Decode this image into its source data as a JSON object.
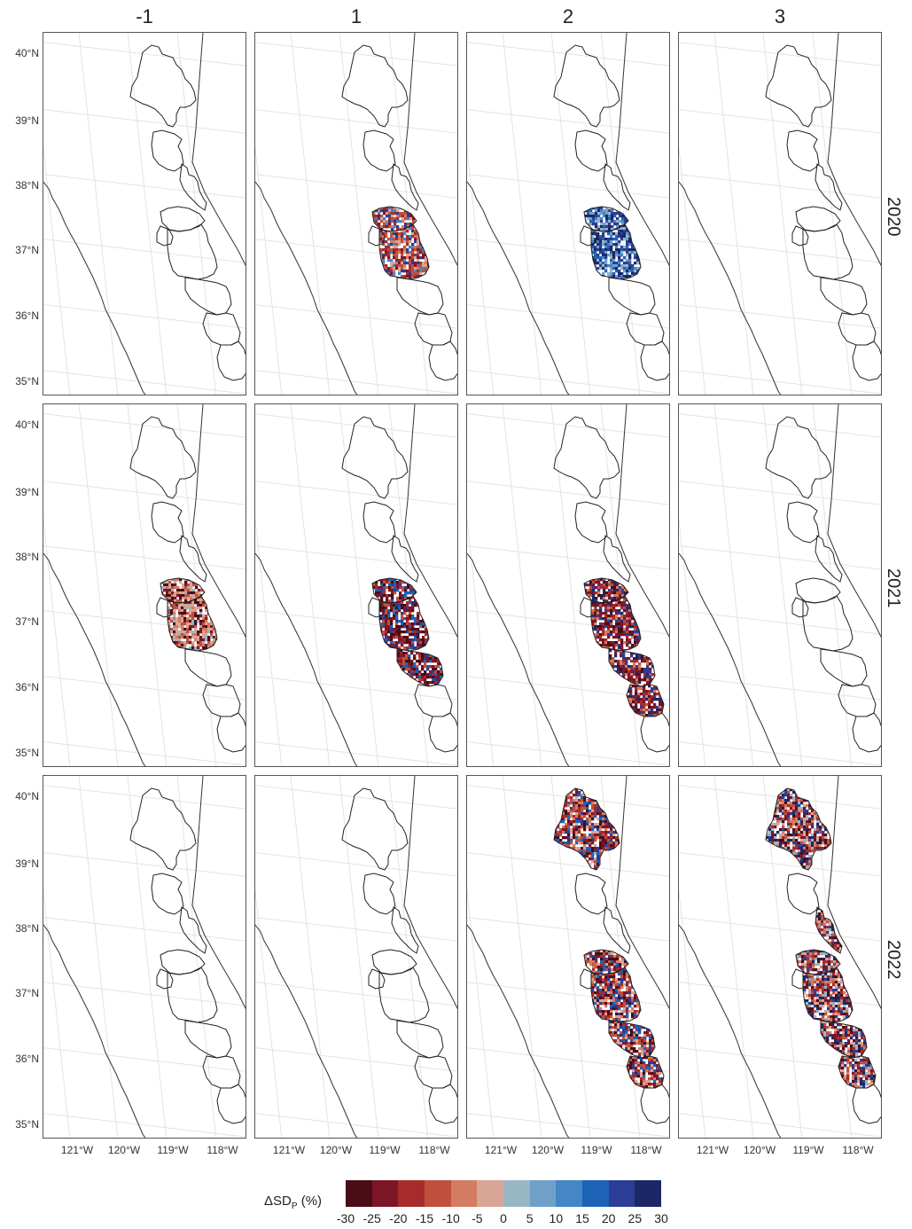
{
  "columns": [
    "-1",
    "1",
    "2",
    "3"
  ],
  "rows": [
    "2020",
    "2021",
    "2022"
  ],
  "lat_labels": [
    "40°N",
    "39°N",
    "38°N",
    "37°N",
    "36°N",
    "35°N"
  ],
  "lon_labels": [
    "121°W",
    "120°W",
    "119°W",
    "118°W"
  ],
  "legend": {
    "title": "ΔSD",
    "title_sub": "P",
    "title_unit": " (%)",
    "breaks": [
      "-30",
      "-25",
      "-20",
      "-15",
      "-10",
      "-5",
      "0",
      "5",
      "10",
      "15",
      "20",
      "25",
      "30"
    ],
    "colors": [
      "#4a0c17",
      "#7c1626",
      "#a82b2b",
      "#c0503c",
      "#d47b63",
      "#d8a596",
      "#98b6c3",
      "#6fa1c8",
      "#4486c6",
      "#1c63b8",
      "#2c3d95",
      "#1c2766"
    ]
  },
  "panels": [
    {
      "row": "2020",
      "col": "-1",
      "shaded_basins": []
    },
    {
      "row": "2020",
      "col": "1",
      "shaded_basins": [
        "upper-san-joaquin",
        "kings"
      ]
    },
    {
      "row": "2020",
      "col": "2",
      "shaded_basins": [
        "upper-san-joaquin",
        "kings"
      ]
    },
    {
      "row": "2020",
      "col": "3",
      "shaded_basins": []
    },
    {
      "row": "2021",
      "col": "-1",
      "shaded_basins": [
        "upper-san-joaquin",
        "kings"
      ]
    },
    {
      "row": "2021",
      "col": "1",
      "shaded_basins": [
        "upper-san-joaquin",
        "kings",
        "kaweah"
      ]
    },
    {
      "row": "2021",
      "col": "2",
      "shaded_basins": [
        "upper-san-joaquin",
        "kings",
        "kaweah",
        "tule"
      ]
    },
    {
      "row": "2021",
      "col": "3",
      "shaded_basins": []
    },
    {
      "row": "2022",
      "col": "-1",
      "shaded_basins": []
    },
    {
      "row": "2022",
      "col": "1",
      "shaded_basins": []
    },
    {
      "row": "2022",
      "col": "2",
      "shaded_basins": [
        "feather",
        "upper-san-joaquin",
        "kings",
        "kaweah",
        "tule"
      ]
    },
    {
      "row": "2022",
      "col": "3",
      "shaded_basins": [
        "feather",
        "east-walker",
        "upper-san-joaquin",
        "kings",
        "kaweah",
        "tule"
      ]
    }
  ]
}
